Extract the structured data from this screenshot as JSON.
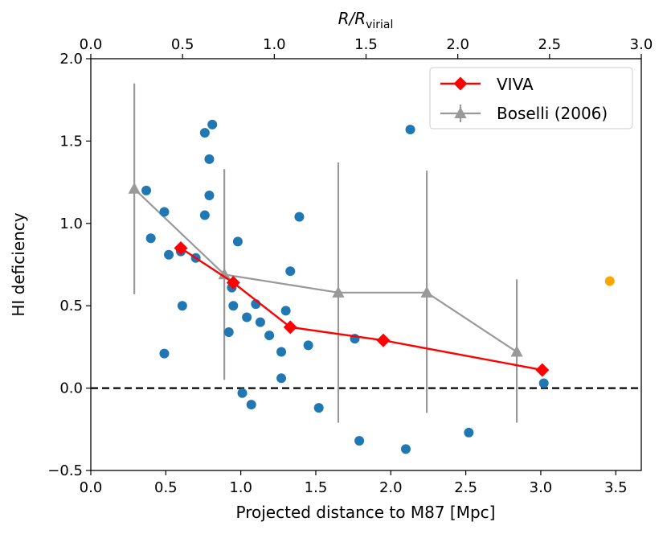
{
  "chart_data": {
    "type": "scatter",
    "xlabel": "Projected distance to M87 [Mpc]",
    "ylabel": "HI deficiency",
    "top_xlabel_main": "R/R",
    "top_xlabel_sub": "virial",
    "xlim": [
      0.0,
      3.67
    ],
    "ylim": [
      -0.5,
      2.0
    ],
    "top_xlim": [
      0.0,
      3.0
    ],
    "xticks": [
      0.0,
      0.5,
      1.0,
      1.5,
      2.0,
      2.5,
      3.0,
      3.5
    ],
    "xtick_labels": [
      "0.0",
      "0.5",
      "1.0",
      "1.5",
      "2.0",
      "2.5",
      "3.0",
      "3.5"
    ],
    "yticks": [
      -0.5,
      0.0,
      0.5,
      1.0,
      1.5,
      2.0
    ],
    "ytick_labels": [
      "−0.5",
      "0.0",
      "0.5",
      "1.0",
      "1.5",
      "2.0"
    ],
    "top_xticks": [
      0.0,
      0.5,
      1.0,
      1.5,
      2.0,
      2.5,
      3.0
    ],
    "top_xtick_labels": [
      "0.0",
      "0.5",
      "1.0",
      "1.5",
      "2.0",
      "2.5",
      "3.0"
    ],
    "reference_line_y": 0.0,
    "legend_position": "top-right",
    "scatter_points": {
      "color": "#1f77b4",
      "points": [
        [
          0.37,
          1.2
        ],
        [
          0.4,
          0.91
        ],
        [
          0.49,
          1.07
        ],
        [
          0.49,
          0.21
        ],
        [
          0.52,
          0.81
        ],
        [
          0.6,
          0.83
        ],
        [
          0.61,
          0.5
        ],
        [
          0.7,
          0.79
        ],
        [
          0.76,
          1.05
        ],
        [
          0.76,
          1.55
        ],
        [
          0.79,
          1.39
        ],
        [
          0.79,
          1.17
        ],
        [
          0.81,
          1.6
        ],
        [
          0.92,
          0.34
        ],
        [
          0.94,
          0.61
        ],
        [
          0.95,
          0.5
        ],
        [
          0.98,
          0.89
        ],
        [
          1.01,
          -0.03
        ],
        [
          1.04,
          0.43
        ],
        [
          1.07,
          -0.1
        ],
        [
          1.1,
          0.51
        ],
        [
          1.13,
          0.4
        ],
        [
          1.19,
          0.32
        ],
        [
          1.27,
          0.22
        ],
        [
          1.27,
          0.06
        ],
        [
          1.3,
          0.47
        ],
        [
          1.33,
          0.71
        ],
        [
          1.39,
          1.04
        ],
        [
          1.45,
          0.26
        ],
        [
          1.52,
          -0.12
        ],
        [
          1.76,
          0.3
        ],
        [
          1.79,
          -0.32
        ],
        [
          2.1,
          -0.37
        ],
        [
          2.13,
          1.57
        ],
        [
          2.52,
          -0.27
        ],
        [
          3.02,
          0.03
        ]
      ]
    },
    "outlier_point": {
      "x": 3.46,
      "y": 0.65,
      "color": "#ffa500"
    },
    "series": [
      {
        "name": "VIVA",
        "color": "#ff0000",
        "marker": "diamond",
        "x": [
          0.6,
          0.95,
          1.33,
          1.95,
          3.01
        ],
        "y": [
          0.85,
          0.64,
          0.37,
          0.29,
          0.11
        ]
      },
      {
        "name": "Boselli (2006)",
        "color": "#999999",
        "marker": "triangle",
        "x": [
          0.29,
          0.89,
          1.65,
          2.24,
          2.84
        ],
        "y": [
          1.21,
          0.69,
          0.58,
          0.58,
          0.22
        ],
        "err_low": [
          0.57,
          0.05,
          -0.21,
          -0.15,
          -0.21
        ],
        "err_high": [
          1.85,
          1.33,
          1.37,
          1.32,
          0.66
        ]
      }
    ]
  }
}
